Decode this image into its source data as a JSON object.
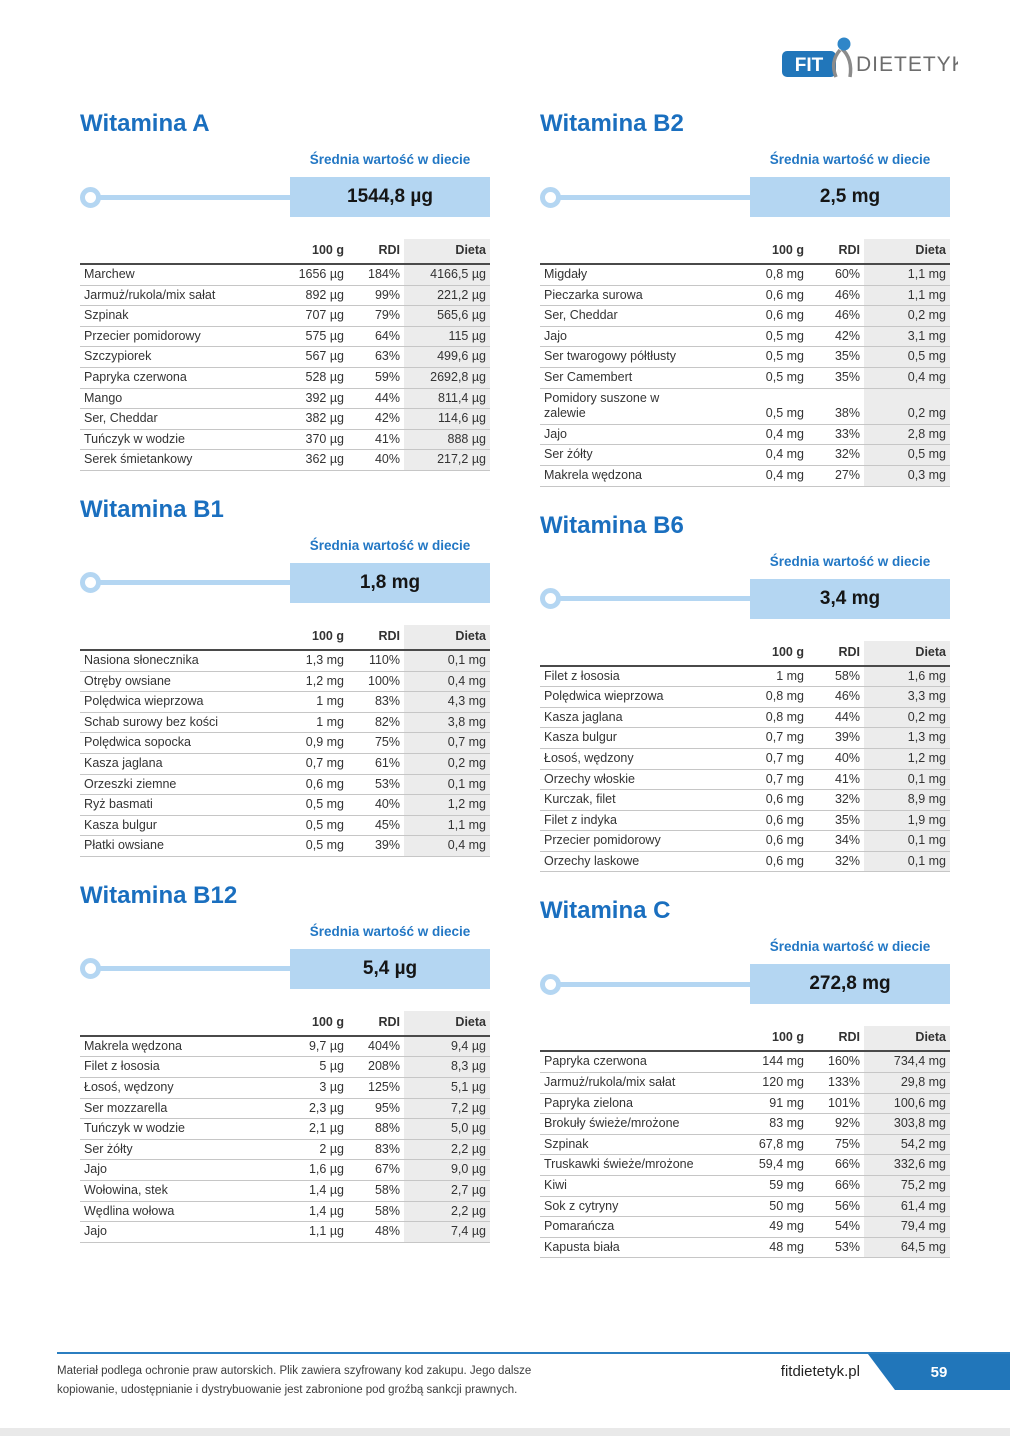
{
  "logo": {
    "fit": "FIT",
    "domain": "DIETETYK.PL"
  },
  "avg_caption": "Średnia wartość w diecie",
  "table_header": {
    "per100": "100 g",
    "rdi": "RDI",
    "diet": "Dieta"
  },
  "sections_left": [
    {
      "title": "Witamina A",
      "average": "1544,8 µg",
      "rows": [
        [
          "Marchew",
          "1656 µg",
          "184%",
          "4166,5 µg"
        ],
        [
          "Jarmuż/rukola/mix sałat",
          "892 µg",
          "99%",
          "221,2 µg"
        ],
        [
          "Szpinak",
          "707 µg",
          "79%",
          "565,6 µg"
        ],
        [
          "Przecier pomidorowy",
          "575 µg",
          "64%",
          "115 µg"
        ],
        [
          "Szczypiorek",
          "567 µg",
          "63%",
          "499,6 µg"
        ],
        [
          "Papryka czerwona",
          "528 µg",
          "59%",
          "2692,8 µg"
        ],
        [
          "Mango",
          "392 µg",
          "44%",
          "811,4 µg"
        ],
        [
          "Ser, Cheddar",
          "382 µg",
          "42%",
          "114,6 µg"
        ],
        [
          "Tuńczyk w wodzie",
          "370 µg",
          "41%",
          "888 µg"
        ],
        [
          "Serek śmietankowy",
          "362 µg",
          "40%",
          "217,2 µg"
        ]
      ]
    },
    {
      "title": "Witamina B1",
      "average": "1,8 mg",
      "rows": [
        [
          "Nasiona słonecznika",
          "1,3 mg",
          "110%",
          "0,1 mg"
        ],
        [
          "Otręby owsiane",
          "1,2 mg",
          "100%",
          "0,4 mg"
        ],
        [
          "Polędwica wieprzowa",
          "1 mg",
          "83%",
          "4,3 mg"
        ],
        [
          "Schab surowy bez kości",
          "1 mg",
          "82%",
          "3,8 mg"
        ],
        [
          "Polędwica sopocka",
          "0,9 mg",
          "75%",
          "0,7 mg"
        ],
        [
          "Kasza jaglana",
          "0,7 mg",
          "61%",
          "0,2 mg"
        ],
        [
          "Orzeszki ziemne",
          "0,6 mg",
          "53%",
          "0,1 mg"
        ],
        [
          "Ryż basmati",
          "0,5 mg",
          "40%",
          "1,2 mg"
        ],
        [
          "Kasza bulgur",
          "0,5 mg",
          "45%",
          "1,1 mg"
        ],
        [
          "Płatki owsiane",
          "0,5 mg",
          "39%",
          "0,4 mg"
        ]
      ]
    },
    {
      "title": "Witamina B12",
      "average": "5,4 µg",
      "rows": [
        [
          "Makrela wędzona",
          "9,7 µg",
          "404%",
          "9,4 µg"
        ],
        [
          "Filet z łososia",
          "5 µg",
          "208%",
          "8,3 µg"
        ],
        [
          "Łosoś, wędzony",
          "3 µg",
          "125%",
          "5,1 µg"
        ],
        [
          "Ser mozzarella",
          "2,3 µg",
          "95%",
          "7,2 µg"
        ],
        [
          "Tuńczyk w wodzie",
          "2,1 µg",
          "88%",
          "5,0 µg"
        ],
        [
          "Ser żółty",
          "2 µg",
          "83%",
          "2,2 µg"
        ],
        [
          "Jajo",
          "1,6 µg",
          "67%",
          "9,0 µg"
        ],
        [
          "Wołowina, stek",
          "1,4 µg",
          "58%",
          "2,7 µg"
        ],
        [
          "Wędlina wołowa",
          "1,4 µg",
          "58%",
          "2,2 µg"
        ],
        [
          "Jajo",
          "1,1 µg",
          "48%",
          "7,4 µg"
        ]
      ]
    }
  ],
  "sections_right": [
    {
      "title": "Witamina B2",
      "average": "2,5 mg",
      "rows": [
        [
          "Migdały",
          "0,8 mg",
          "60%",
          "1,1 mg"
        ],
        [
          "Pieczarka surowa",
          "0,6 mg",
          "46%",
          "1,1 mg"
        ],
        [
          "Ser, Cheddar",
          "0,6 mg",
          "46%",
          "0,2 mg"
        ],
        [
          "Jajo",
          "0,5 mg",
          "42%",
          "3,1 mg"
        ],
        [
          "Ser twarogowy półtłusty",
          "0,5 mg",
          "35%",
          "0,5 mg"
        ],
        [
          "Ser Camembert",
          "0,5 mg",
          "35%",
          "0,4 mg"
        ],
        [
          "Pomidory suszone w\nzalewie",
          "0,5 mg",
          "38%",
          "0,2 mg"
        ],
        [
          "Jajo",
          "0,4 mg",
          "33%",
          "2,8 mg"
        ],
        [
          "Ser żółty",
          "0,4 mg",
          "32%",
          "0,5 mg"
        ],
        [
          "Makrela wędzona",
          "0,4 mg",
          "27%",
          "0,3 mg"
        ]
      ]
    },
    {
      "title": "Witamina B6",
      "average": "3,4 mg",
      "rows": [
        [
          "Filet z łososia",
          "1 mg",
          "58%",
          "1,6 mg"
        ],
        [
          "Polędwica wieprzowa",
          "0,8 mg",
          "46%",
          "3,3 mg"
        ],
        [
          "Kasza jaglana",
          "0,8 mg",
          "44%",
          "0,2 mg"
        ],
        [
          "Kasza bulgur",
          "0,7 mg",
          "39%",
          "1,3 mg"
        ],
        [
          "Łosoś, wędzony",
          "0,7 mg",
          "40%",
          "1,2 mg"
        ],
        [
          "Orzechy włoskie",
          "0,7 mg",
          "41%",
          "0,1 mg"
        ],
        [
          "Kurczak, filet",
          "0,6 mg",
          "32%",
          "8,9 mg"
        ],
        [
          "Filet z indyka",
          "0,6 mg",
          "35%",
          "1,9 mg"
        ],
        [
          "Przecier pomidorowy",
          "0,6 mg",
          "34%",
          "0,1 mg"
        ],
        [
          "Orzechy laskowe",
          "0,6 mg",
          "32%",
          "0,1 mg"
        ]
      ]
    },
    {
      "title": "Witamina C",
      "average": "272,8 mg",
      "rows": [
        [
          "Papryka czerwona",
          "144 mg",
          "160%",
          "734,4 mg"
        ],
        [
          "Jarmuż/rukola/mix sałat",
          "120 mg",
          "133%",
          "29,8 mg"
        ],
        [
          "Papryka zielona",
          "91 mg",
          "101%",
          "100,6 mg"
        ],
        [
          "Brokuły świeże/mrożone",
          "83 mg",
          "92%",
          "303,8 mg"
        ],
        [
          "Szpinak",
          "67,8 mg",
          "75%",
          "54,2 mg"
        ],
        [
          "Truskawki świeże/mrożone",
          "59,4 mg",
          "66%",
          "332,6 mg"
        ],
        [
          "Kiwi",
          "59 mg",
          "66%",
          "75,2 mg"
        ],
        [
          "Sok z cytryny",
          "50 mg",
          "56%",
          "61,4 mg"
        ],
        [
          "Pomarańcza",
          "49 mg",
          "54%",
          "79,4 mg"
        ],
        [
          "Kapusta biała",
          "48 mg",
          "53%",
          "64,5 mg"
        ]
      ]
    }
  ],
  "footer": {
    "disclaimer": "Materiał podlega ochronie praw autorskich. Plik zawiera szyfrowany kod zakupu. Jego dalsze kopiowanie, udostępnianie i dystrybuowanie jest zabronione pod groźbą sankcji prawnych.",
    "brand": "fitdietetyk.pl",
    "page_number": "59"
  },
  "colors": {
    "heading_blue": "#1a6fbf",
    "caption_blue": "#2277c4",
    "gauge_fill": "#b4d6f2",
    "footer_line_blue": "#2b7ec0",
    "badge_blue": "#2176ba",
    "diet_col_bg": "#ececec"
  }
}
